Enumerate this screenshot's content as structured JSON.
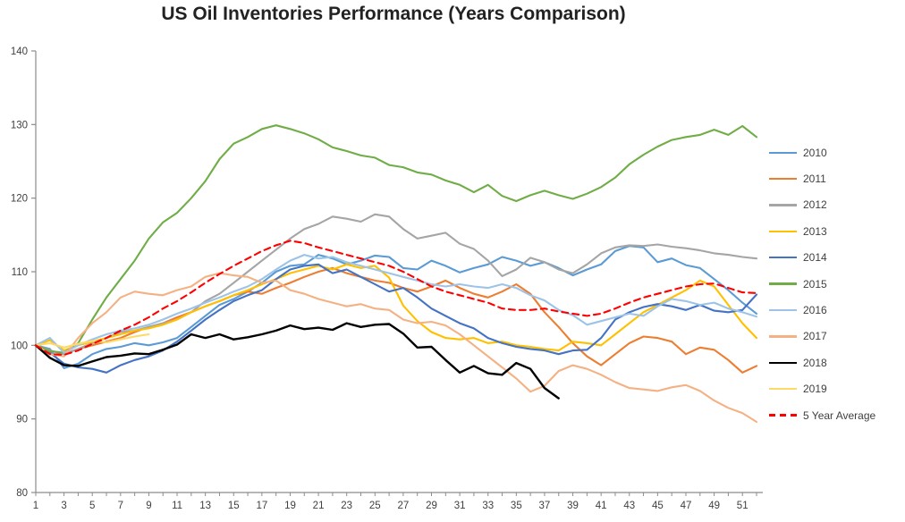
{
  "chart_data": {
    "type": "line",
    "title": "US Oil Inventories Performance (Years Comparison)",
    "xlabel": "",
    "ylabel": "",
    "x_unit": "week of year",
    "x_range": [
      1,
      52
    ],
    "x_tick_labels": [
      1,
      3,
      5,
      7,
      9,
      11,
      13,
      15,
      17,
      19,
      21,
      23,
      25,
      27,
      29,
      31,
      33,
      35,
      37,
      39,
      41,
      43,
      45,
      47,
      49,
      51
    ],
    "ylim": [
      80,
      140
    ],
    "y_ticks": [
      80,
      90,
      100,
      110,
      120,
      130,
      140
    ],
    "grid": false,
    "legend_position": "right",
    "axis_color": "#8c8c8c",
    "tick_label_color": "#404040",
    "series": [
      {
        "name": "2010",
        "color": "#5B9BD5",
        "style": "solid",
        "start_week": 1,
        "values": [
          100,
          99.5,
          96.9,
          97.5,
          98.8,
          99.5,
          99.8,
          100.3,
          100,
          100.4,
          101,
          102.5,
          104,
          105.5,
          106.3,
          107.3,
          108.5,
          110,
          110.8,
          111,
          112.3,
          111.8,
          111,
          111.5,
          112.2,
          112,
          110.5,
          110.3,
          111.5,
          110.8,
          109.9,
          110.5,
          111,
          112,
          111.5,
          110.8,
          111.3,
          110.5,
          109.5,
          110.3,
          111,
          112.8,
          113.5,
          113.3,
          111.3,
          111.8,
          110.9,
          110.5,
          109,
          107.5,
          105.8,
          104.3
        ]
      },
      {
        "name": "2011",
        "color": "#ED7D31",
        "style": "solid",
        "start_week": 1,
        "values": [
          100,
          99.3,
          98.8,
          99.5,
          100,
          100.5,
          101,
          101.8,
          102.5,
          103,
          103.8,
          104.5,
          105.3,
          106,
          106.8,
          107.3,
          107,
          107.8,
          108.5,
          109.3,
          110,
          110.5,
          109.8,
          109.3,
          108.8,
          108.5,
          107.8,
          107.3,
          108,
          108.8,
          107.8,
          107,
          106.5,
          107.3,
          108.3,
          107,
          104.5,
          102.5,
          100.3,
          98.5,
          97.3,
          98.8,
          100.3,
          101.2,
          101,
          100.5,
          98.8,
          99.7,
          99.4,
          98,
          96.3,
          97.2
        ]
      },
      {
        "name": "2012",
        "color": "#A5A5A5",
        "style": "solid",
        "start_week": 1,
        "values": [
          100,
          99.3,
          98.8,
          99.5,
          100.3,
          101,
          101.8,
          102,
          102.5,
          103,
          103.5,
          104.5,
          106,
          107,
          108.5,
          110,
          111.5,
          113,
          114.5,
          115.8,
          116.5,
          117.5,
          117.2,
          116.8,
          117.8,
          117.5,
          115.8,
          114.5,
          114.9,
          115.3,
          113.8,
          113.1,
          111.5,
          109.4,
          110.3,
          111.9,
          111.3,
          110.3,
          109.8,
          111,
          112.5,
          113.3,
          113.6,
          113.5,
          113.7,
          113.4,
          113.2,
          112.9,
          112.5,
          112.3,
          112,
          111.8
        ]
      },
      {
        "name": "2013",
        "color": "#FFC000",
        "style": "solid",
        "start_week": 1,
        "values": [
          100,
          100.7,
          99.3,
          100,
          100.5,
          101,
          101.5,
          102,
          102.3,
          102.8,
          103.5,
          104.5,
          105.3,
          106,
          106.8,
          107.5,
          108.3,
          109,
          109.8,
          110.3,
          110.8,
          110.3,
          111,
          110.5,
          110.8,
          109.2,
          105.4,
          103.3,
          101.8,
          101,
          100.8,
          101,
          100.3,
          100.5,
          100,
          99.8,
          99.5,
          99.3,
          100.5,
          100.3,
          100,
          101.5,
          103,
          104.5,
          105.5,
          106.5,
          107.5,
          108.8,
          108,
          105.5,
          103,
          101
        ]
      },
      {
        "name": "2014",
        "color": "#4472C4",
        "style": "solid",
        "start_week": 1,
        "values": [
          100,
          99,
          97.5,
          97,
          96.8,
          96.3,
          97.3,
          98,
          98.5,
          99.3,
          100.5,
          102,
          103.5,
          104.8,
          106,
          106.8,
          107.5,
          109,
          110.3,
          110.8,
          111,
          109.8,
          110.3,
          109.3,
          108.3,
          107.3,
          107.8,
          106.5,
          105,
          104,
          103,
          102.3,
          101,
          100.3,
          99.8,
          99.5,
          99.3,
          98.8,
          99.3,
          99.4,
          101,
          103.5,
          104.5,
          105.2,
          105.6,
          105.3,
          104.8,
          105.5,
          104.7,
          104.5,
          104.8,
          106.9
        ]
      },
      {
        "name": "2015",
        "color": "#70AD47",
        "style": "solid",
        "start_week": 1,
        "values": [
          100,
          99.2,
          99,
          100.3,
          103.5,
          106.5,
          109,
          111.5,
          114.5,
          116.7,
          118,
          120,
          122.3,
          125.3,
          127.4,
          128.3,
          129.4,
          129.9,
          129.4,
          128.8,
          128,
          126.9,
          126.4,
          125.8,
          125.5,
          124.5,
          124.2,
          123.5,
          123.2,
          122.4,
          121.8,
          120.8,
          121.8,
          120.3,
          119.6,
          120.4,
          121,
          120.4,
          119.9,
          120.6,
          121.5,
          122.8,
          124.6,
          125.9,
          127,
          127.9,
          128.3,
          128.6,
          129.3,
          128.6,
          129.8,
          128.3
        ]
      },
      {
        "name": "2016",
        "color": "#9DC3E6",
        "style": "solid",
        "start_week": 1,
        "values": [
          100,
          101,
          99,
          100,
          100.8,
          101.5,
          102,
          102.3,
          102.8,
          103.5,
          104.3,
          105,
          105.8,
          106.5,
          107.3,
          108,
          109,
          110.3,
          111.5,
          112.3,
          111.8,
          112,
          111.3,
          110.8,
          110.3,
          109.8,
          109.3,
          108.8,
          108.3,
          108,
          108.3,
          108,
          107.8,
          108.3,
          107.8,
          106.8,
          106.1,
          104.8,
          104.1,
          102.8,
          103.3,
          103.8,
          104.3,
          104,
          105.3,
          106.3,
          106,
          105.5,
          105.8,
          105,
          104.5,
          103.9
        ]
      },
      {
        "name": "2017",
        "color": "#F4B183",
        "style": "solid",
        "start_week": 1,
        "values": [
          100,
          98.8,
          98.5,
          101,
          103,
          104.5,
          106.5,
          107.3,
          107,
          106.8,
          107.5,
          108,
          109.3,
          109.8,
          109.5,
          109.3,
          108.5,
          108.8,
          107.5,
          107,
          106.3,
          105.8,
          105.3,
          105.6,
          105,
          104.8,
          103.5,
          103,
          103.2,
          102.7,
          101.5,
          100,
          98.5,
          97,
          95.5,
          93.7,
          94.5,
          96.5,
          97.3,
          96.8,
          96,
          95,
          94.2,
          94,
          93.8,
          94.3,
          94.6,
          93.8,
          92.5,
          91.5,
          90.8,
          89.6
        ]
      },
      {
        "name": "2018",
        "color": "#000000",
        "style": "solid",
        "start_week": 1,
        "values": [
          100,
          98.3,
          97.3,
          97.2,
          97.8,
          98.4,
          98.6,
          98.9,
          98.8,
          99.4,
          100.1,
          101.5,
          101,
          101.5,
          100.8,
          101.1,
          101.5,
          102,
          102.7,
          102.2,
          102.4,
          102.1,
          103,
          102.5,
          102.8,
          102.9,
          101.6,
          99.7,
          99.8,
          98,
          96.3,
          97.2,
          96.2,
          96,
          97.6,
          96.8,
          94.2,
          92.8
        ]
      },
      {
        "name": "2019",
        "color": "#FFD966",
        "style": "solid",
        "start_week": 1,
        "values": [
          100,
          100.3,
          99.7,
          100.2,
          100.6,
          100.4,
          100.8,
          101.2,
          101.5
        ]
      },
      {
        "name": "5 Year Average",
        "color": "#FF0000",
        "style": "dashed",
        "start_week": 1,
        "values": [
          100,
          98.8,
          98.7,
          99.3,
          100.2,
          101,
          102,
          102.8,
          103.8,
          105,
          106,
          107.2,
          108.5,
          109.7,
          110.8,
          111.8,
          112.8,
          113.6,
          114.2,
          113.9,
          113.3,
          112.8,
          112.3,
          111.8,
          111.3,
          110.8,
          110,
          109,
          108,
          107.3,
          106.8,
          106.3,
          105.8,
          105,
          104.8,
          104.8,
          105,
          104.6,
          104.3,
          104,
          104.3,
          105,
          105.8,
          106.5,
          107,
          107.5,
          108,
          108.3,
          108.4,
          107.8,
          107.2,
          107.1
        ]
      }
    ]
  }
}
